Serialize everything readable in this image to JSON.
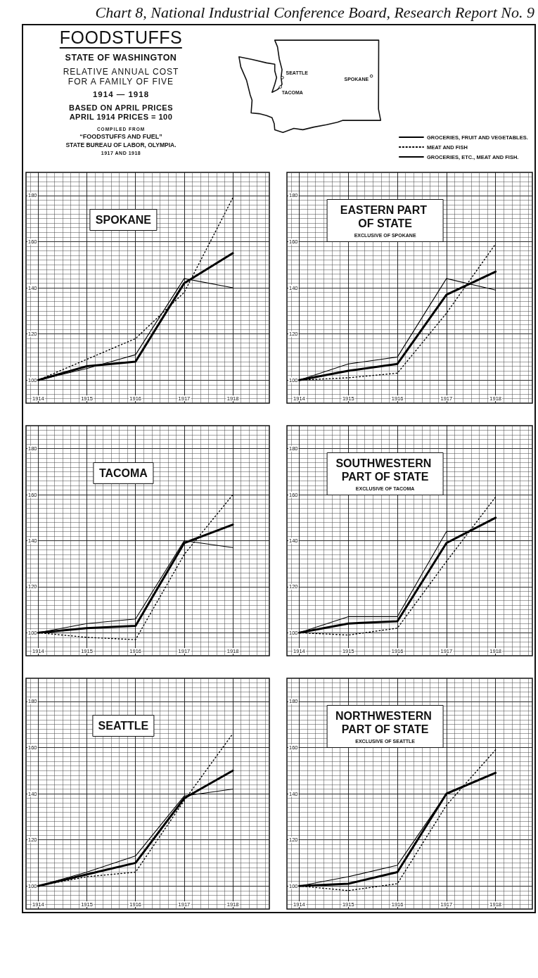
{
  "chart_data": [
    {
      "type": "other",
      "title": "FOODSTUFFS",
      "subtitle": "STATE OF WASHINGTON",
      "annotations": [
        "Chart 8, National Industrial Conference Board, Research Report No. 9",
        "RELATIVE ANNUAL COST FOR A FAMILY OF FIVE",
        "1914 — 1918",
        "BASED ON APRIL PRICES APRIL 1914 PRICES = 100",
        "COMPILED FROM",
        "“FOODSTUFFS AND FUEL”",
        "STATE BUREAU OF LABOR, OLYMPIA.",
        "1917 AND 1918",
        "SEATTLE",
        "TACOMA",
        "SPOKANE"
      ]
    },
    {
      "type": "line",
      "title": "SPOKANE",
      "x": [
        1914,
        1915,
        1916,
        1917,
        1918
      ],
      "xlim": [
        1913.75,
        1918.75
      ],
      "xticks": [
        1914,
        1915,
        1916,
        1917,
        1918
      ],
      "ylim": [
        90,
        190
      ],
      "yticks": [
        100,
        120,
        140,
        160,
        180
      ],
      "grid": true,
      "series": [
        {
          "color": "#000000",
          "line_style": "solid",
          "values": [
            100,
            105,
            111,
            144,
            140
          ]
        },
        {
          "color": "#000000",
          "line_style": "dotted",
          "values": [
            100,
            109,
            118,
            138,
            179
          ]
        },
        {
          "color": "#000000",
          "line_style": "solid",
          "values": [
            100,
            106,
            108,
            142,
            155
          ]
        }
      ]
    },
    {
      "type": "line",
      "title": "EASTERN PART OF STATE",
      "subtitle": "EXCLUSIVE OF SPOKANE",
      "x": [
        1914,
        1915,
        1916,
        1917,
        1918
      ],
      "xlim": [
        1913.75,
        1918.75
      ],
      "xticks": [
        1914,
        1915,
        1916,
        1917,
        1918
      ],
      "ylim": [
        90,
        190
      ],
      "yticks": [
        100,
        120,
        140,
        160,
        180
      ],
      "grid": true,
      "legend": "top right",
      "series": [
        {
          "name": "GROCERIES, FRUIT AND VEGETABLES.",
          "color": "#000000",
          "line_style": "solid",
          "values": [
            100,
            107,
            110,
            144,
            139
          ]
        },
        {
          "name": "MEAT AND FISH",
          "color": "#000000",
          "line_style": "dotted",
          "values": [
            100,
            101,
            103,
            129,
            159
          ]
        },
        {
          "name": "GROCERIES, ETC., MEAT AND FISH.",
          "color": "#000000",
          "line_style": "solid",
          "values": [
            100,
            104,
            107,
            137,
            147
          ]
        }
      ]
    },
    {
      "type": "line",
      "title": "TACOMA",
      "x": [
        1914,
        1915,
        1916,
        1917,
        1918
      ],
      "xlim": [
        1913.75,
        1918.75
      ],
      "xticks": [
        1914,
        1915,
        1916,
        1917,
        1918
      ],
      "ylim": [
        90,
        190
      ],
      "yticks": [
        100,
        120,
        140,
        160,
        180
      ],
      "grid": true,
      "series": [
        {
          "color": "#000000",
          "line_style": "solid",
          "values": [
            100,
            104,
            106,
            140,
            137
          ]
        },
        {
          "color": "#000000",
          "line_style": "dotted",
          "values": [
            100,
            98,
            97,
            134,
            160
          ]
        },
        {
          "color": "#000000",
          "line_style": "solid",
          "values": [
            100,
            102,
            103,
            139,
            147
          ]
        }
      ]
    },
    {
      "type": "line",
      "title": "SOUTHWESTERN PART OF STATE",
      "subtitle": "EXCLUSIVE OF TACOMA",
      "x": [
        1914,
        1915,
        1916,
        1917,
        1918
      ],
      "xlim": [
        1913.75,
        1918.75
      ],
      "xticks": [
        1914,
        1915,
        1916,
        1917,
        1918
      ],
      "ylim": [
        90,
        190
      ],
      "yticks": [
        100,
        120,
        140,
        160,
        180
      ],
      "grid": true,
      "series": [
        {
          "color": "#000000",
          "line_style": "solid",
          "values": [
            100,
            107,
            107,
            144,
            144
          ]
        },
        {
          "color": "#000000",
          "line_style": "dotted",
          "values": [
            100,
            99,
            102,
            131,
            159
          ]
        },
        {
          "color": "#000000",
          "line_style": "solid",
          "values": [
            100,
            104,
            105,
            139,
            150
          ]
        }
      ]
    },
    {
      "type": "line",
      "title": "SEATTLE",
      "x": [
        1914,
        1915,
        1916,
        1917,
        1918
      ],
      "xlim": [
        1913.75,
        1918.75
      ],
      "xticks": [
        1914,
        1915,
        1916,
        1917,
        1918
      ],
      "ylim": [
        90,
        190
      ],
      "yticks": [
        100,
        120,
        140,
        160,
        180
      ],
      "grid": true,
      "series": [
        {
          "color": "#000000",
          "line_style": "solid",
          "values": [
            100,
            106,
            113,
            139,
            142
          ]
        },
        {
          "color": "#000000",
          "line_style": "dotted",
          "values": [
            100,
            104,
            106,
            137,
            166
          ]
        },
        {
          "color": "#000000",
          "line_style": "solid",
          "values": [
            100,
            105,
            110,
            138,
            150
          ]
        }
      ]
    },
    {
      "type": "line",
      "title": "NORTHWESTERN PART OF STATE",
      "subtitle": "EXCLUSIVE OF SEATTLE",
      "x": [
        1914,
        1915,
        1916,
        1917,
        1918
      ],
      "xlim": [
        1913.75,
        1918.75
      ],
      "xticks": [
        1914,
        1915,
        1916,
        1917,
        1918
      ],
      "ylim": [
        90,
        190
      ],
      "yticks": [
        100,
        120,
        140,
        160,
        180
      ],
      "grid": true,
      "series": [
        {
          "color": "#000000",
          "line_style": "solid",
          "values": [
            100,
            104,
            109,
            140,
            null
          ]
        },
        {
          "color": "#000000",
          "line_style": "dotted",
          "values": [
            100,
            98,
            101,
            135,
            159
          ]
        },
        {
          "color": "#000000",
          "line_style": "solid",
          "values": [
            100,
            101,
            106,
            140,
            149
          ]
        }
      ]
    }
  ]
}
